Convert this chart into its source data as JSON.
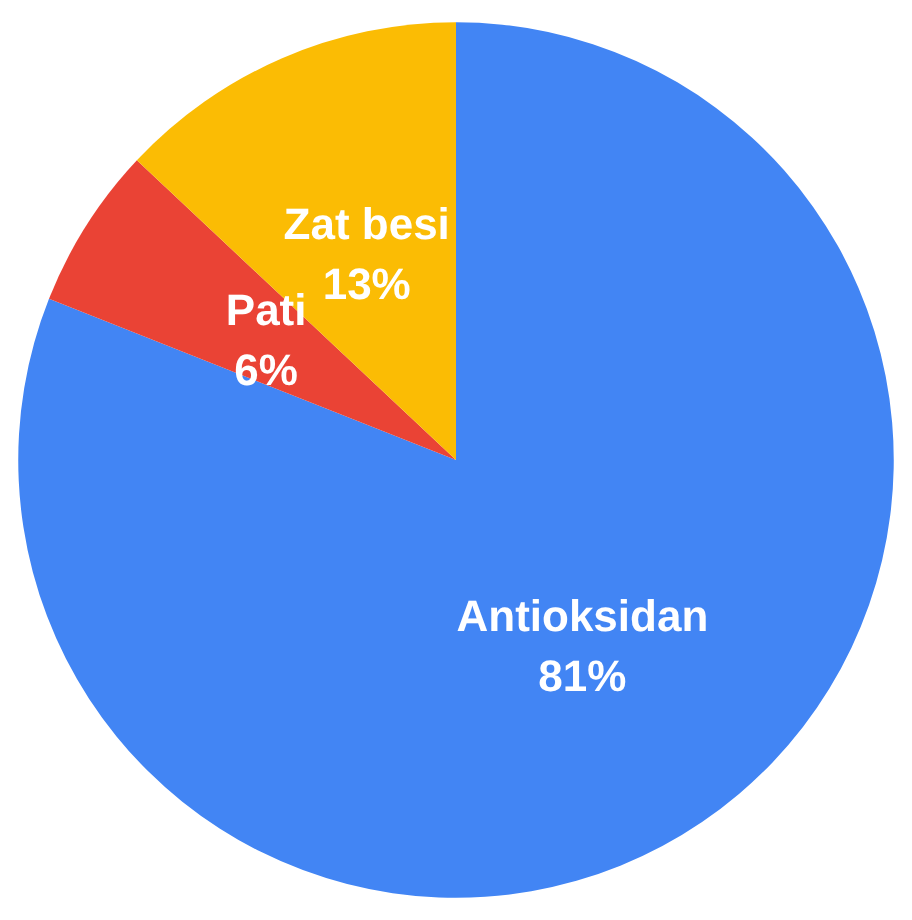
{
  "chart_data": {
    "type": "pie",
    "categories": [
      "Antioksidan",
      "Pati",
      "Zat besi"
    ],
    "values": [
      81,
      6,
      13
    ],
    "colors": [
      "#4285f4",
      "#ea4335",
      "#fbbc04"
    ],
    "value_labels": [
      "81%",
      "6%",
      "13%"
    ],
    "legend": false
  }
}
